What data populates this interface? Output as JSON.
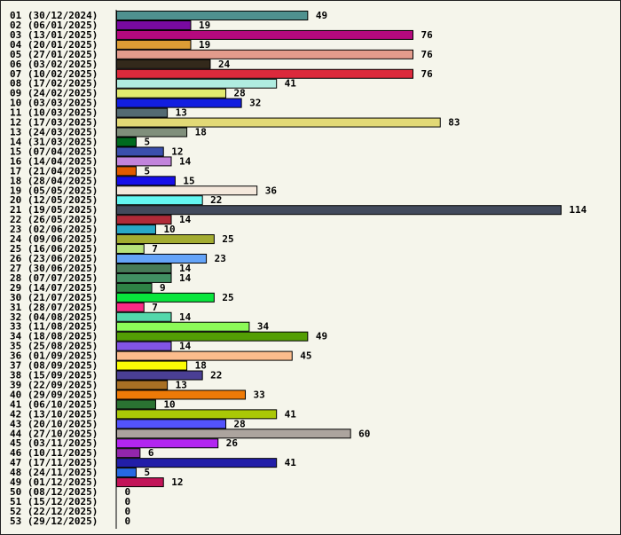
{
  "chart_data": {
    "type": "bar",
    "orientation": "horizontal",
    "title": "",
    "xlabel": "",
    "ylabel": "",
    "xlim": [
      0,
      114
    ],
    "grid": false,
    "categories": [
      "01 (30/12/2024)",
      "02 (06/01/2025)",
      "03 (13/01/2025)",
      "04 (20/01/2025)",
      "05 (27/01/2025)",
      "06 (03/02/2025)",
      "07 (10/02/2025)",
      "08 (17/02/2025)",
      "09 (24/02/2025)",
      "10 (03/03/2025)",
      "11 (10/03/2025)",
      "12 (17/03/2025)",
      "13 (24/03/2025)",
      "14 (31/03/2025)",
      "15 (07/04/2025)",
      "16 (14/04/2025)",
      "17 (21/04/2025)",
      "18 (28/04/2025)",
      "19 (05/05/2025)",
      "20 (12/05/2025)",
      "21 (19/05/2025)",
      "22 (26/05/2025)",
      "23 (02/06/2025)",
      "24 (09/06/2025)",
      "25 (16/06/2025)",
      "26 (23/06/2025)",
      "27 (30/06/2025)",
      "28 (07/07/2025)",
      "29 (14/07/2025)",
      "30 (21/07/2025)",
      "31 (28/07/2025)",
      "32 (04/08/2025)",
      "33 (11/08/2025)",
      "34 (18/08/2025)",
      "35 (25/08/2025)",
      "36 (01/09/2025)",
      "37 (08/09/2025)",
      "38 (15/09/2025)",
      "39 (22/09/2025)",
      "40 (29/09/2025)",
      "41 (06/10/2025)",
      "42 (13/10/2025)",
      "43 (20/10/2025)",
      "44 (27/10/2025)",
      "45 (03/11/2025)",
      "46 (10/11/2025)",
      "47 (17/11/2025)",
      "48 (24/11/2025)",
      "49 (01/12/2025)",
      "50 (08/12/2025)",
      "51 (15/12/2025)",
      "52 (22/12/2025)",
      "53 (29/12/2025)"
    ],
    "values": [
      49,
      19,
      76,
      19,
      76,
      24,
      76,
      41,
      28,
      32,
      13,
      83,
      18,
      5,
      12,
      14,
      5,
      15,
      36,
      22,
      114,
      14,
      10,
      25,
      7,
      23,
      14,
      14,
      9,
      25,
      7,
      14,
      34,
      49,
      14,
      45,
      18,
      22,
      13,
      33,
      10,
      41,
      28,
      60,
      26,
      6,
      41,
      5,
      12,
      0,
      0,
      0,
      0
    ],
    "colors": [
      "#4f918f",
      "#780aa0",
      "#b4097e",
      "#dc9c35",
      "#e39b8c",
      "#33291b",
      "#dc2a3c",
      "#b0ece0",
      "#e1ea6e",
      "#121ee0",
      "#536a72",
      "#e2d976",
      "#808f7b",
      "#006a1f",
      "#3a4fad",
      "#c284dc",
      "#e05b00",
      "#160ee8",
      "#f4e8dc",
      "#64f6f1",
      "#424a5c",
      "#b02a38",
      "#29a8c6",
      "#a3ac31",
      "#b8e27c",
      "#65a4f8",
      "#477b57",
      "#419062",
      "#2e8245",
      "#08e63c",
      "#fa2a84",
      "#53d8ab",
      "#8cfa58",
      "#539e04",
      "#8254e4",
      "#fcbc8c",
      "#fafc05",
      "#4a3f94",
      "#a87024",
      "#ee7a07",
      "#2a7232",
      "#aac806",
      "#5353fc",
      "#aca49e",
      "#b226f0",
      "#9226ac",
      "#221ea8",
      "#2669e2",
      "#c21458",
      "#000000",
      "#000000",
      "#000000",
      "#000000"
    ]
  }
}
